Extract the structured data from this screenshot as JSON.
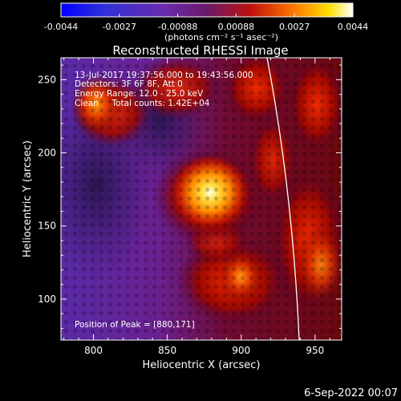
{
  "colorbar": {
    "tick_labels": [
      "-0.0044",
      "-0.0027",
      "-0.00088",
      "0.00088",
      "0.0027",
      "0.0044"
    ],
    "units": "(photons cm⁻² s⁻¹ asec⁻²)"
  },
  "title": "Reconstructed RHESSI Image",
  "annotations": {
    "time_range": "13-Jul-2017 19:37:56.000 to 19:43:56.000",
    "detectors": "Detectors: 3F 6F 8F, Att 0",
    "energy_range": "Energy Range: 12.0 - 25.0 keV",
    "clean_counts": "Clean     Total counts: 1.42E+04",
    "peak_position": "Position of Peak = [880,171]"
  },
  "axes": {
    "xlabel": "Heliocentric X (arcsec)",
    "ylabel": "Heliocentric Y (arcsec)",
    "x_ticks": [
      "800",
      "850",
      "900",
      "950"
    ],
    "y_ticks": [
      "100",
      "150",
      "200",
      "250"
    ],
    "xlim": [
      778,
      968
    ],
    "ylim": [
      72,
      265
    ]
  },
  "footer_date": "6-Sep-2022 00:07",
  "colors": {
    "background": "#000000",
    "limb_line": "#ffffff"
  }
}
